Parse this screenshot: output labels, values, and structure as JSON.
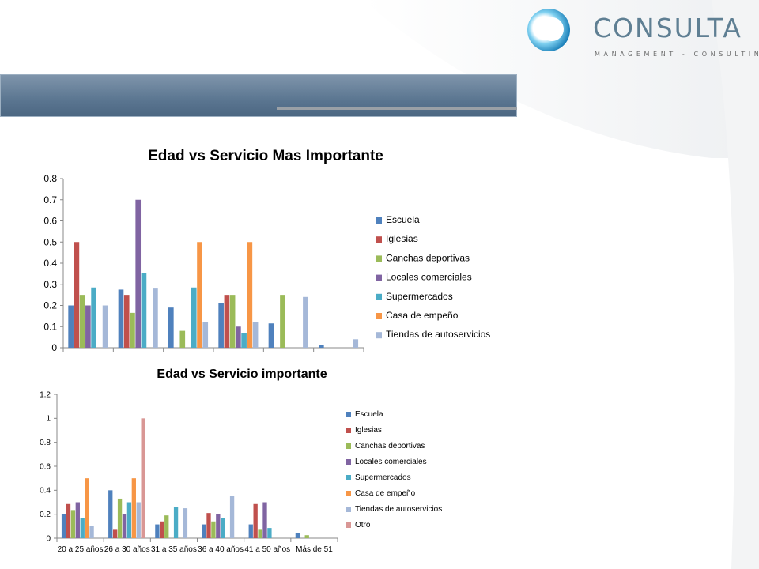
{
  "brand": {
    "name": "CONSULTA",
    "tagline": "MANAGEMENT  -  CONSULTING",
    "colors": {
      "brand_text": "#5f7f93",
      "banner": "#5b7691",
      "logo_ring": "#2a9bd1"
    }
  },
  "legend_colors": [
    "#4f81bd",
    "#c0504d",
    "#9bbb59",
    "#8064a2",
    "#4bacc6",
    "#f79646",
    "#a5b8d8",
    "#d99795"
  ],
  "chart_data": [
    {
      "type": "bar",
      "title": "Edad vs Servicio Mas Importante",
      "ylim": [
        0,
        0.8
      ],
      "yticks": [
        "0",
        "0.1",
        "0.2",
        "0.3",
        "0.4",
        "0.5",
        "0.6",
        "0.7",
        "0.8"
      ],
      "categories": [
        "",
        "",
        "",
        "",
        "",
        ""
      ],
      "legend_position": "right",
      "grid": false,
      "series": [
        {
          "name": "Escuela",
          "values": [
            0.2,
            0.275,
            0.19,
            0.21,
            0.115,
            0.012
          ]
        },
        {
          "name": "Iglesias",
          "values": [
            0.5,
            0.25,
            0,
            0.25,
            0,
            0
          ]
        },
        {
          "name": "Canchas deportivas",
          "values": [
            0.25,
            0.165,
            0.08,
            0.25,
            0.25,
            0
          ]
        },
        {
          "name": "Locales comerciales",
          "values": [
            0.2,
            0.7,
            0,
            0.1,
            0,
            0
          ]
        },
        {
          "name": "Supermercados",
          "values": [
            0.285,
            0.355,
            0.285,
            0.07,
            0,
            0
          ]
        },
        {
          "name": "Casa de empeño",
          "values": [
            0,
            0,
            0.5,
            0.5,
            0,
            0
          ]
        },
        {
          "name": "Tiendas de autoservicios",
          "values": [
            0.2,
            0.28,
            0.12,
            0.12,
            0.24,
            0.04
          ]
        }
      ]
    },
    {
      "type": "bar",
      "title": "Edad vs Servicio importante",
      "ylim": [
        0,
        1.2
      ],
      "yticks": [
        "0",
        "0.2",
        "0.4",
        "0.6",
        "0.8",
        "1",
        "1.2"
      ],
      "categories": [
        "20 a 25 años",
        "26 a 30 años",
        "31 a 35 años",
        "36 a 40 años",
        "41 a 50 años",
        "Más de 51"
      ],
      "legend_position": "right",
      "grid": false,
      "series": [
        {
          "name": "Escuela",
          "values": [
            0.2,
            0.4,
            0.115,
            0.115,
            0.115,
            0.04
          ]
        },
        {
          "name": "Iglesias",
          "values": [
            0.285,
            0.07,
            0.14,
            0.21,
            0.285,
            0
          ]
        },
        {
          "name": "Canchas deportivas",
          "values": [
            0.235,
            0.33,
            0.19,
            0.14,
            0.07,
            0.025
          ]
        },
        {
          "name": "Locales comerciales",
          "values": [
            0.3,
            0.2,
            0,
            0.2,
            0.3,
            0
          ]
        },
        {
          "name": "Supermercados",
          "values": [
            0.17,
            0.3,
            0.26,
            0.17,
            0.085,
            0
          ]
        },
        {
          "name": "Casa de empeño",
          "values": [
            0.5,
            0.5,
            0,
            0,
            0,
            0
          ]
        },
        {
          "name": "Tiendas de autoservicios",
          "values": [
            0.1,
            0.3,
            0.25,
            0.35,
            0,
            0
          ]
        },
        {
          "name": "Otro",
          "values": [
            0,
            1,
            0,
            0,
            0,
            0
          ]
        }
      ]
    }
  ]
}
